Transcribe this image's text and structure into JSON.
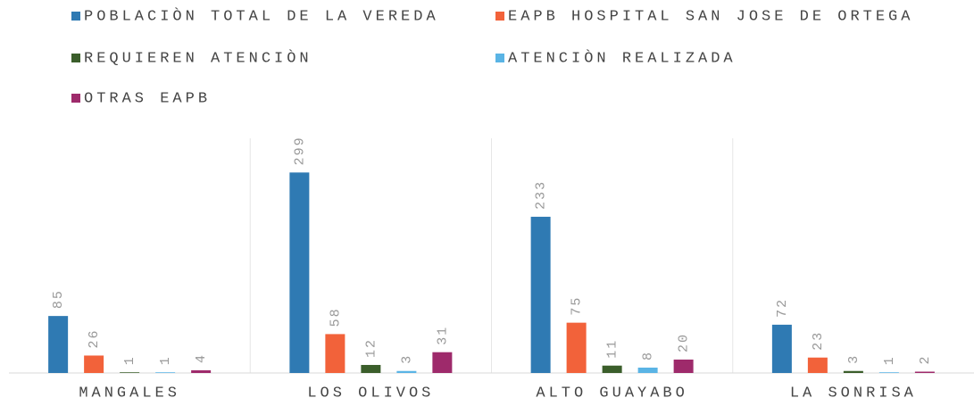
{
  "chart_data": {
    "type": "bar",
    "categories": [
      "MANGALES",
      "LOS OLIVOS",
      "ALTO GUAYABO",
      "LA SONRISA"
    ],
    "series": [
      {
        "name": "POBLACIÒN TOTAL DE LA VEREDA",
        "color": "#2f7ab3",
        "values": [
          85,
          299,
          233,
          72
        ]
      },
      {
        "name": "EAPB HOSPITAL SAN JOSE DE ORTEGA",
        "color": "#f2623a",
        "values": [
          26,
          58,
          75,
          23
        ]
      },
      {
        "name": "REQUIEREN ATENCIÒN",
        "color": "#3b5e2b",
        "values": [
          1,
          12,
          11,
          3
        ]
      },
      {
        "name": "ATENCIÒN REALIZADA",
        "color": "#5ab4e5",
        "values": [
          1,
          3,
          8,
          1
        ]
      },
      {
        "name": "OTRAS EAPB",
        "color": "#9e2a6b",
        "values": [
          4,
          31,
          20,
          2
        ]
      }
    ],
    "ylim": [
      0,
      350
    ],
    "grid": true
  }
}
